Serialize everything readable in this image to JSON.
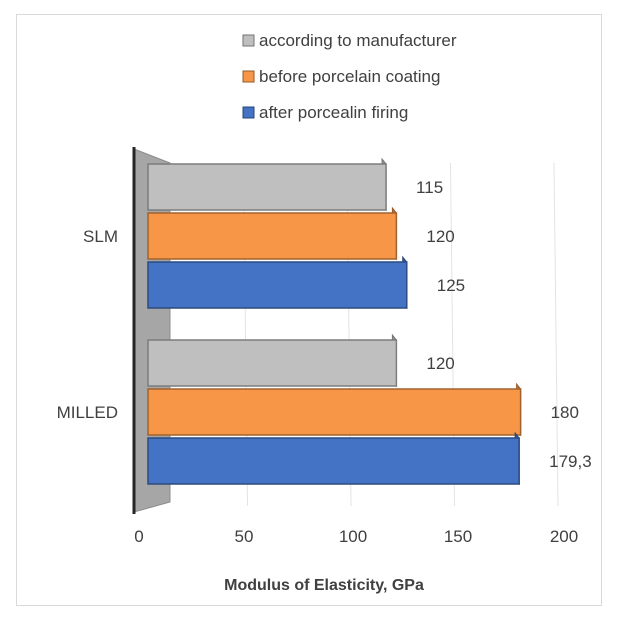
{
  "chart_data": {
    "type": "bar",
    "orientation": "horizontal",
    "title": "",
    "xlabel": "Modulus of Elasticity, GPa",
    "ylabel": "",
    "categories": [
      "SLM",
      "MILLED"
    ],
    "series": [
      {
        "name": "according to manufacturer",
        "values": [
          115,
          120
        ],
        "labels": [
          "115",
          "120"
        ]
      },
      {
        "name": "before porcelain coating",
        "values": [
          120,
          180
        ],
        "labels": [
          "120",
          "180"
        ]
      },
      {
        "name": "after porcealin firing",
        "values": [
          125,
          179.3
        ],
        "labels": [
          "125",
          "179,3"
        ]
      }
    ],
    "xlim": [
      0,
      200
    ],
    "xticks": [
      "0",
      "50",
      "100",
      "150",
      "200"
    ],
    "grid": true,
    "legend_position": "top",
    "colors": [
      "#bfbfbf",
      "#f79646",
      "#4472c4"
    ]
  }
}
